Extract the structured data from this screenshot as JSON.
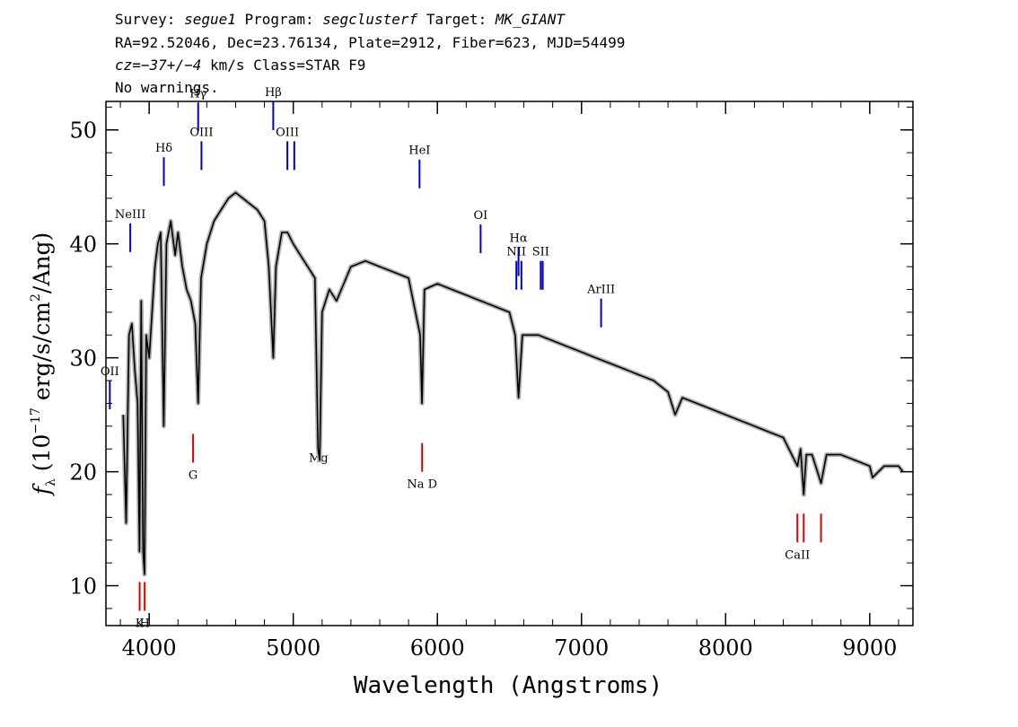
{
  "header": {
    "line1": {
      "survey_label": "Survey:",
      "survey": "segue1",
      "program_label": "Program:",
      "program": "segclusterf",
      "target_label": "Target:",
      "target": "MK_GIANT"
    },
    "line2": "RA=92.52046, Dec=23.76134, Plate=2912, Fiber=623, MJD=54499",
    "line3": {
      "cz_label": "cz=",
      "cz": "−37+/−4",
      "rest": " km/s Class=STAR F9"
    },
    "line4": "No warnings."
  },
  "chart_data": {
    "type": "line",
    "xlabel": "Wavelength (Angstroms)",
    "ylabel": "f_λ (10^-17 erg/s/cm^2/Ang)",
    "xlim": [
      3700,
      9300
    ],
    "ylim": [
      6.5,
      52.5
    ],
    "xticks": [
      4000,
      5000,
      6000,
      7000,
      8000,
      9000
    ],
    "yticks": [
      10,
      20,
      30,
      40,
      50
    ],
    "series": [
      {
        "values": [
          [
            3820,
            25
          ],
          [
            3840,
            15.5
          ],
          [
            3860,
            32
          ],
          [
            3880,
            33
          ],
          [
            3900,
            29
          ],
          [
            3920,
            26
          ],
          [
            3933,
            13
          ],
          [
            3945,
            35
          ],
          [
            3958,
            13
          ],
          [
            3968,
            11
          ],
          [
            3980,
            32
          ],
          [
            4000,
            30
          ],
          [
            4020,
            34
          ],
          [
            4040,
            38
          ],
          [
            4060,
            40
          ],
          [
            4080,
            41
          ],
          [
            4101,
            24
          ],
          [
            4120,
            40
          ],
          [
            4150,
            42
          ],
          [
            4180,
            39
          ],
          [
            4200,
            41
          ],
          [
            4230,
            38
          ],
          [
            4260,
            36
          ],
          [
            4290,
            35
          ],
          [
            4320,
            33
          ],
          [
            4340,
            26
          ],
          [
            4360,
            37
          ],
          [
            4400,
            40
          ],
          [
            4450,
            42
          ],
          [
            4500,
            43
          ],
          [
            4550,
            44
          ],
          [
            4600,
            44.5
          ],
          [
            4650,
            44
          ],
          [
            4700,
            43.5
          ],
          [
            4750,
            43
          ],
          [
            4800,
            42
          ],
          [
            4830,
            38
          ],
          [
            4861,
            30
          ],
          [
            4880,
            38
          ],
          [
            4920,
            41
          ],
          [
            4960,
            41
          ],
          [
            5000,
            40
          ],
          [
            5050,
            39
          ],
          [
            5100,
            38
          ],
          [
            5150,
            37
          ],
          [
            5172,
            22
          ],
          [
            5183,
            21
          ],
          [
            5200,
            34
          ],
          [
            5250,
            36
          ],
          [
            5300,
            35
          ],
          [
            5400,
            38
          ],
          [
            5500,
            38.5
          ],
          [
            5600,
            38
          ],
          [
            5700,
            37.5
          ],
          [
            5800,
            37
          ],
          [
            5880,
            32
          ],
          [
            5893,
            26
          ],
          [
            5910,
            36
          ],
          [
            6000,
            36.5
          ],
          [
            6100,
            36
          ],
          [
            6200,
            35.5
          ],
          [
            6300,
            35
          ],
          [
            6400,
            34.5
          ],
          [
            6500,
            34
          ],
          [
            6540,
            32
          ],
          [
            6563,
            26.5
          ],
          [
            6590,
            32
          ],
          [
            6700,
            32
          ],
          [
            6800,
            31.5
          ],
          [
            6900,
            31
          ],
          [
            7000,
            30.5
          ],
          [
            7100,
            30
          ],
          [
            7200,
            29.5
          ],
          [
            7300,
            29
          ],
          [
            7400,
            28.5
          ],
          [
            7500,
            28
          ],
          [
            7600,
            27
          ],
          [
            7650,
            25
          ],
          [
            7700,
            26.5
          ],
          [
            7800,
            26
          ],
          [
            7900,
            25.5
          ],
          [
            8000,
            25
          ],
          [
            8100,
            24.5
          ],
          [
            8200,
            24
          ],
          [
            8300,
            23.5
          ],
          [
            8400,
            23
          ],
          [
            8498,
            20.5
          ],
          [
            8520,
            22
          ],
          [
            8542,
            18
          ],
          [
            8560,
            21.5
          ],
          [
            8600,
            21.5
          ],
          [
            8662,
            19
          ],
          [
            8700,
            21.5
          ],
          [
            8800,
            21.5
          ],
          [
            8900,
            21
          ],
          [
            9000,
            20.5
          ],
          [
            9020,
            19.5
          ],
          [
            9100,
            20.5
          ],
          [
            9200,
            20.5
          ],
          [
            9230,
            20
          ]
        ]
      }
    ],
    "lines": {
      "emission": [
        {
          "name": "NeIII",
          "wavelength": 3869,
          "y_top": 41.8,
          "label_side": "top"
        },
        {
          "name": "OII",
          "wavelength": 3727,
          "y_top": 28.0,
          "label_side": "top"
        },
        {
          "name": "Hδ",
          "wavelength": 4102,
          "y_top": 47.6,
          "label_side": "top"
        },
        {
          "name": "Hγ",
          "wavelength": 4340,
          "y_top": 52.4,
          "label_side": "top"
        },
        {
          "name": "OIII",
          "wavelength": 4363,
          "y_top": 49.0,
          "label_side": "top"
        },
        {
          "name": "Hβ",
          "wavelength": 4861,
          "y_top": 52.5,
          "label_side": "top"
        },
        {
          "name": "OIII",
          "wavelength": 4959,
          "y_top": 49.0,
          "label_side": "top"
        },
        {
          "name": "OIII",
          "wavelength": 5007,
          "y_top": 49.0,
          "label_side": "top"
        },
        {
          "name": "HeI",
          "wavelength": 5876,
          "y_top": 47.4,
          "label_side": "top"
        },
        {
          "name": "OI",
          "wavelength": 6300,
          "y_top": 41.7,
          "label_side": "top"
        },
        {
          "name": "NII",
          "wavelength": 6548,
          "y_top": 38.5,
          "label_side": "top"
        },
        {
          "name": "Hα",
          "wavelength": 6563,
          "y_top": 39.7,
          "label_side": "top"
        },
        {
          "name": "NII",
          "wavelength": 6583,
          "y_top": 38.5,
          "label_side": "top"
        },
        {
          "name": "SII",
          "wavelength": 6717,
          "y_top": 38.5,
          "label_side": "top"
        },
        {
          "name": "SII",
          "wavelength": 6731,
          "y_top": 38.5,
          "label_side": "top"
        },
        {
          "name": "ArIII",
          "wavelength": 7136,
          "y_top": 35.2,
          "label_side": "top"
        }
      ],
      "absorption": [
        {
          "name": "K",
          "wavelength": 3934,
          "y_bottom": 7.8
        },
        {
          "name": "H",
          "wavelength": 3969,
          "y_bottom": 7.8
        },
        {
          "name": "G",
          "wavelength": 4305,
          "y_bottom": 20.8
        },
        {
          "name": "Mg",
          "wavelength": 5175,
          "y_bottom": 22.3
        },
        {
          "name": "Na D",
          "wavelength": 5894,
          "y_bottom": 20.0
        },
        {
          "name": "CaII",
          "wavelength": 8498,
          "y_bottom": 13.8
        },
        {
          "name": "CaII",
          "wavelength": 8542,
          "y_bottom": 13.8
        },
        {
          "name": "CaII",
          "wavelength": 8662,
          "y_bottom": 13.8
        }
      ],
      "emission_color": "#0000cc",
      "absorption_color": "#dd0000"
    },
    "grid": false
  }
}
